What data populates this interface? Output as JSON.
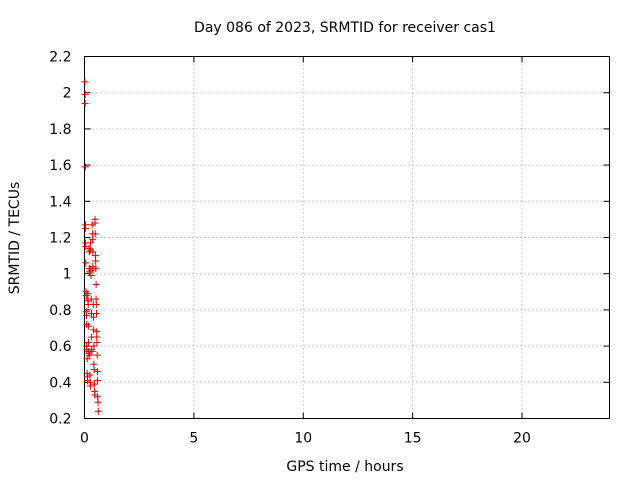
{
  "chart_data": {
    "type": "scatter",
    "title": "Day 086 of 2023, SRMTID for receiver cas1",
    "xlabel": "GPS time / hours",
    "ylabel": "SRMTID / TECUs",
    "xlim": [
      0,
      24
    ],
    "ylim": [
      0.2,
      2.2
    ],
    "xticks": [
      0,
      5,
      10,
      15,
      20
    ],
    "xtick_labels": [
      "0",
      "5",
      "10",
      "15",
      "20"
    ],
    "yticks": [
      0.2,
      0.4,
      0.6,
      0.8,
      1.0,
      1.2,
      1.4,
      1.6,
      1.8,
      2.0,
      2.2
    ],
    "ytick_labels": [
      "0.2",
      "0.4",
      "0.6",
      "0.8",
      "1",
      "1.2",
      "1.4",
      "1.6",
      "1.8",
      "2",
      "2.2"
    ],
    "grid": true,
    "marker": "+",
    "color": "#e00000",
    "series": [
      {
        "name": "cas1",
        "x": [
          0.02,
          0.03,
          0.03,
          0.04,
          0.05,
          0.05,
          0.05,
          0.06,
          0.06,
          0.07,
          0.08,
          0.08,
          0.09,
          0.1,
          0.1,
          0.11,
          0.12,
          0.12,
          0.13,
          0.14,
          0.15,
          0.15,
          0.16,
          0.17,
          0.18,
          0.18,
          0.19,
          0.2,
          0.21,
          0.22,
          0.22,
          0.23,
          0.24,
          0.25,
          0.26,
          0.27,
          0.28,
          0.28,
          0.29,
          0.3,
          0.31,
          0.32,
          0.33,
          0.33,
          0.34,
          0.35,
          0.36,
          0.37,
          0.38,
          0.38,
          0.39,
          0.4,
          0.41,
          0.42,
          0.43,
          0.43,
          0.44,
          0.45,
          0.46,
          0.47,
          0.48,
          0.48,
          0.49,
          0.5,
          0.51,
          0.52,
          0.53,
          0.53,
          0.54,
          0.55,
          0.56,
          0.56,
          0.57,
          0.58,
          0.59,
          0.6,
          0.6,
          0.62,
          0.63
        ],
        "y": [
          2.06,
          1.99,
          1.94,
          1.59,
          1.27,
          1.25,
          1.17,
          1.15,
          1.06,
          0.9,
          0.88,
          0.79,
          0.77,
          0.72,
          0.6,
          0.58,
          0.53,
          0.45,
          0.43,
          0.41,
          0.89,
          0.86,
          0.85,
          0.83,
          0.71,
          0.62,
          0.57,
          0.56,
          1.14,
          1.12,
          1.03,
          1.01,
          0.55,
          0.44,
          0.4,
          0.38,
          1.17,
          1.13,
          1.02,
          0.99,
          0.86,
          0.78,
          0.65,
          0.58,
          0.57,
          1.27,
          1.22,
          1.19,
          1.12,
          1.04,
          1.02,
          0.83,
          0.76,
          0.69,
          0.6,
          0.5,
          0.47,
          0.39,
          0.35,
          0.33,
          1.3,
          1.28,
          1.22,
          1.1,
          1.07,
          1.03,
          0.94,
          0.86,
          0.83,
          0.78,
          0.68,
          0.65,
          0.62,
          0.55,
          0.46,
          0.41,
          0.32,
          0.29,
          0.24
        ]
      }
    ]
  }
}
